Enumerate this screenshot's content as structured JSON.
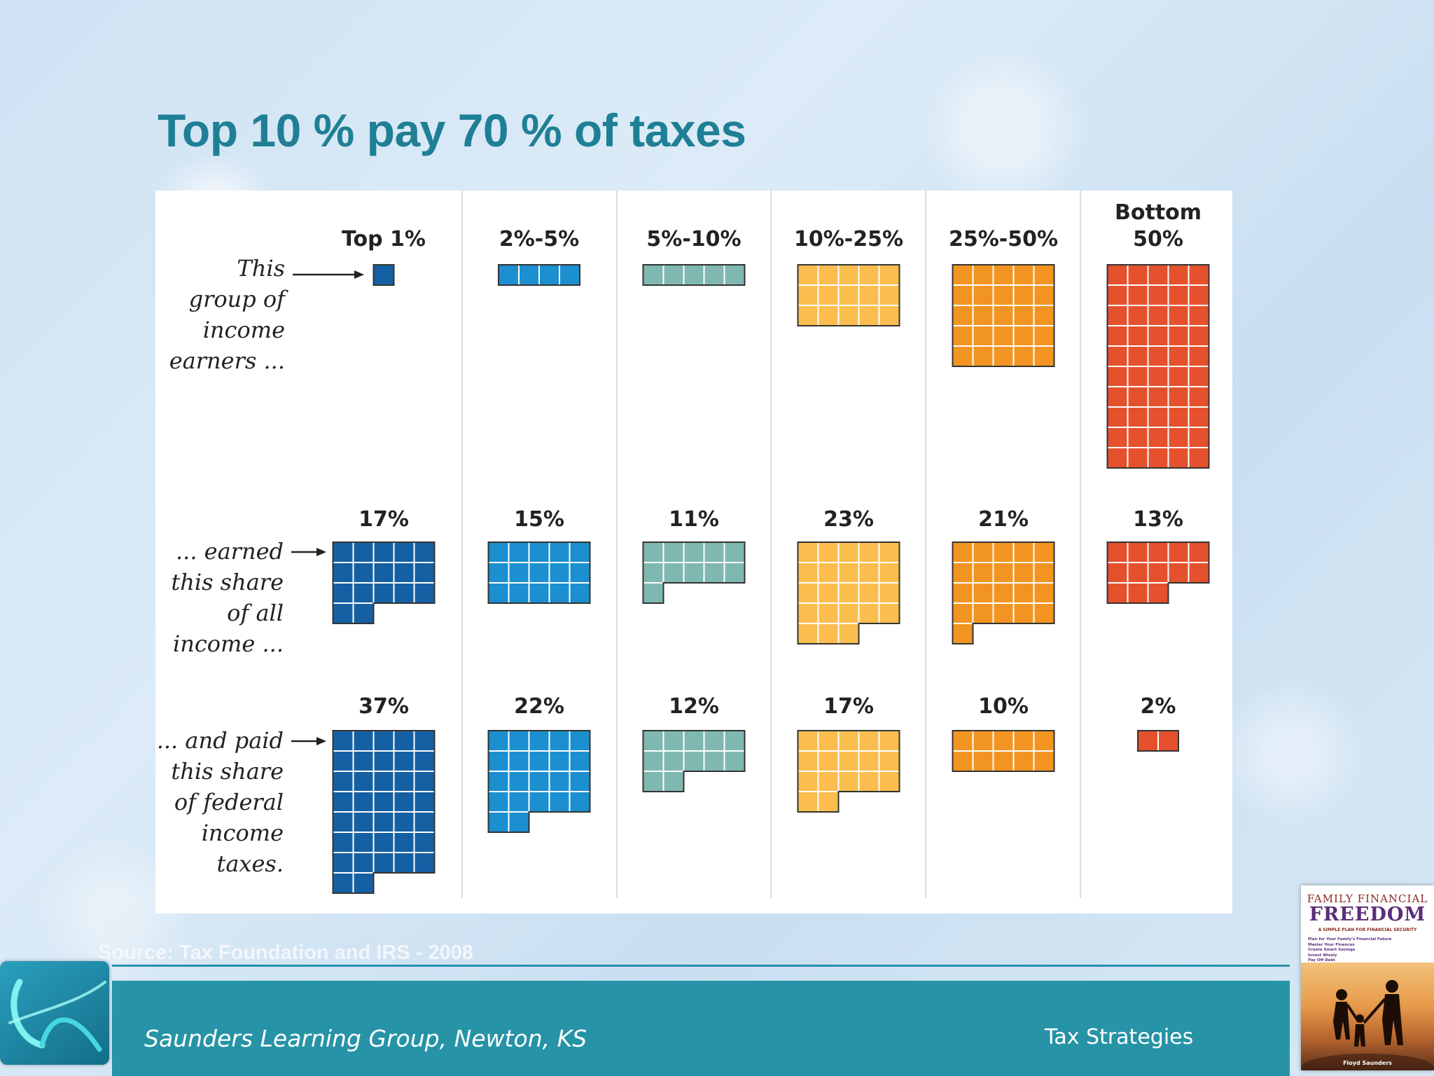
{
  "slide": {
    "title": "Top 10 % pay 70 % of taxes",
    "source": "Source: Tax Foundation and IRS - 2008",
    "footer_left": "Saunders Learning Group, Newton, KS",
    "footer_right": "Tax Strategies"
  },
  "book": {
    "line1": "FAMILY FINANCIAL",
    "line2": "FREEDOM",
    "subtitle": "A SIMPLE PLAN FOR FINANCIAL SECURITY",
    "bullets": [
      "Plan for Your Family's Financial Future",
      "Master Your Finances",
      "Create Smart Savings",
      "Invest Wisely",
      "Pay Off Debt"
    ],
    "author": "Floyd Saunders"
  },
  "chart_data": {
    "type": "waffle",
    "unit": "each square = 1%",
    "groups": [
      {
        "label": [
          "Top 1%"
        ],
        "color": "#1560a3",
        "group_share": 1,
        "income_share": 17,
        "tax_share": 37
      },
      {
        "label": [
          "2%-5%"
        ],
        "color": "#1b8fd0",
        "group_share": 4,
        "income_share": 15,
        "tax_share": 22
      },
      {
        "label": [
          "5%-10%"
        ],
        "color": "#7fb8b0",
        "group_share": 5,
        "income_share": 11,
        "tax_share": 12
      },
      {
        "label": [
          "10%-25%"
        ],
        "color": "#fbbd4e",
        "group_share": 15,
        "income_share": 23,
        "tax_share": 17
      },
      {
        "label": [
          "25%-50%"
        ],
        "color": "#f29421",
        "group_share": 25,
        "income_share": 21,
        "tax_share": 10
      },
      {
        "label": [
          "Bottom",
          "50%"
        ],
        "color": "#e4512c",
        "group_share": 50,
        "income_share": 13,
        "tax_share": 2
      }
    ],
    "row_labels": {
      "group": [
        "This",
        "group of",
        "income",
        "earners ..."
      ],
      "income": [
        "... earned",
        "this share",
        "of all",
        "income ..."
      ],
      "tax": [
        "... and paid",
        "this share",
        "of federal",
        "income",
        "taxes."
      ]
    }
  }
}
